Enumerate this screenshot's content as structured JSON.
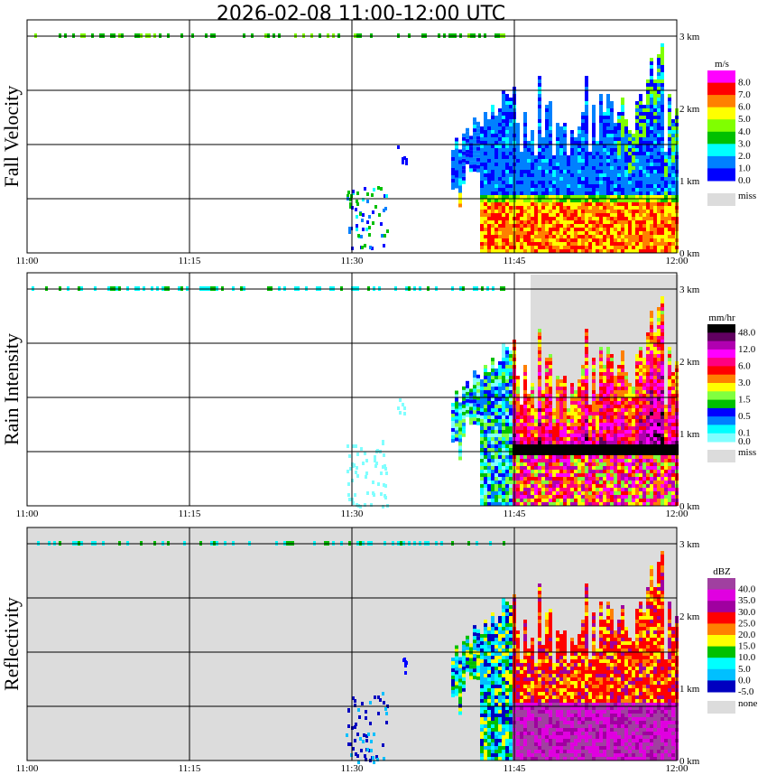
{
  "chart_data": {
    "type": "heatmap",
    "title": "2026-02-08   11:00-12:00 UTC",
    "x_ticks": [
      "11:00",
      "11:15",
      "11:30",
      "11:45",
      "12:00"
    ],
    "y_ticks": [
      "0 km",
      "1 km",
      "2 km",
      "3 km"
    ],
    "xlim": [
      "11:00",
      "12:00"
    ],
    "ylim_km": [
      0,
      3.2
    ],
    "panels": [
      {
        "name": "Fall Velocity",
        "unit": "m/s",
        "colors": [
          "#ff00ff",
          "#ff0000",
          "#ff8000",
          "#ffff00",
          "#80ff00",
          "#00c000",
          "#00ffff",
          "#0080ff",
          "#0000ff"
        ],
        "labels": [
          "8.0",
          "7.0",
          "6.0",
          "5.0",
          "4.0",
          "3.0",
          "2.0",
          "1.0",
          "0.0"
        ],
        "label_at": [
          1,
          2,
          3,
          4,
          5,
          6,
          7,
          8,
          9
        ],
        "missing_label": "miss",
        "missing_color": "#dcdcdc"
      },
      {
        "name": "Rain Intensity",
        "unit": "mm/hr",
        "colors": [
          "#000000",
          "#600060",
          "#b000b0",
          "#ff00ff",
          "#ff0080",
          "#ff0000",
          "#ff8000",
          "#ffff00",
          "#80ff40",
          "#00c000",
          "#0000ff",
          "#0080ff",
          "#00ffff",
          "#80ffff"
        ],
        "labels": [
          "48.0",
          "12.0",
          "6.0",
          "3.0",
          "1.5",
          "0.5",
          "0.1",
          "0.0"
        ],
        "label_at": [
          1,
          3,
          5,
          7,
          9,
          11,
          13,
          14
        ],
        "missing_label": "miss",
        "missing_color": "#dcdcdc"
      },
      {
        "name": "Reflectivity",
        "unit": "dBZ",
        "colors": [
          "#a040a0",
          "#e000e0",
          "#a000a0",
          "#ff0000",
          "#ff8000",
          "#ffff00",
          "#00c000",
          "#00ffff",
          "#00c0ff",
          "#0000c0"
        ],
        "labels": [
          "40.0",
          "35.0",
          "30.0",
          "25.0",
          "20.0",
          "15.0",
          "10.0",
          "5.0",
          "0.0",
          "-5.0"
        ],
        "label_at": [
          1,
          2,
          3,
          4,
          5,
          6,
          7,
          8,
          9,
          10
        ],
        "missing_label": "none",
        "missing_color": "#dcdcdc"
      }
    ]
  }
}
